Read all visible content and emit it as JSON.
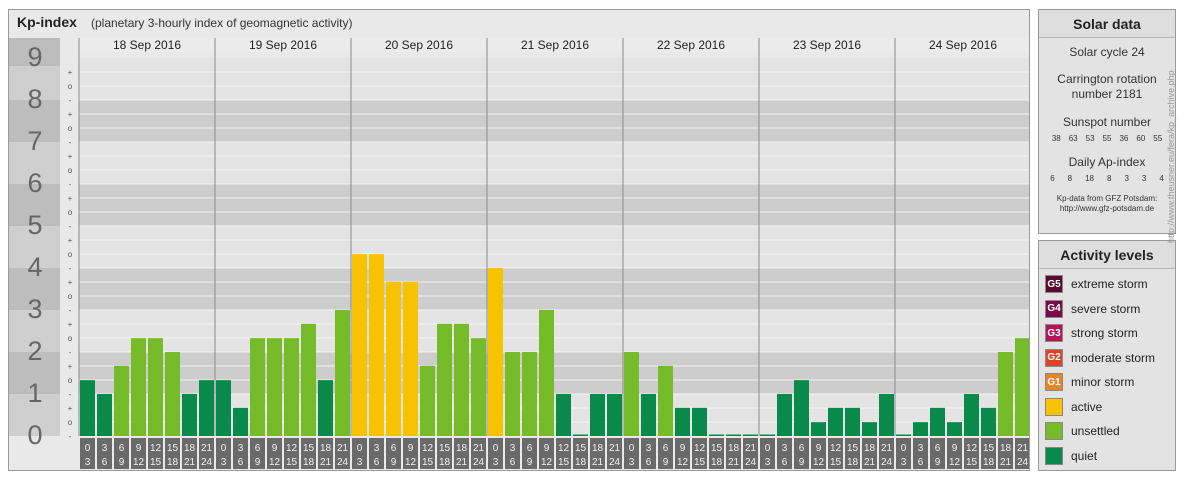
{
  "header": {
    "title": "Kp-index",
    "subtitle": "(planetary 3-hourly index of geomagnetic activity)"
  },
  "chart_data": {
    "type": "bar",
    "ylim": [
      0,
      9
    ],
    "y_major_ticks": [
      "0",
      "1",
      "2",
      "3",
      "4",
      "5",
      "6",
      "7",
      "8",
      "9"
    ],
    "y_minor_ticks": [
      "-",
      "o",
      "+"
    ],
    "days": [
      "18 Sep 2016",
      "19 Sep 2016",
      "20 Sep 2016",
      "21 Sep 2016",
      "22 Sep 2016",
      "23 Sep 2016",
      "24 Sep 2016"
    ],
    "interval_labels": [
      [
        "0",
        "3"
      ],
      [
        "3",
        "6"
      ],
      [
        "6",
        "9"
      ],
      [
        "9",
        "12"
      ],
      [
        "12",
        "15"
      ],
      [
        "15",
        "18"
      ],
      [
        "18",
        "21"
      ],
      [
        "21",
        "24"
      ]
    ],
    "values": [
      [
        1.33,
        1.0,
        1.67,
        2.33,
        2.33,
        2.0,
        1.0,
        1.33
      ],
      [
        1.33,
        0.67,
        2.33,
        2.33,
        2.33,
        2.67,
        1.33,
        3.0
      ],
      [
        4.33,
        4.33,
        3.67,
        3.67,
        1.67,
        2.67,
        2.67,
        2.33
      ],
      [
        4.0,
        2.0,
        2.0,
        3.0,
        1.0,
        0.0,
        1.0,
        1.0
      ],
      [
        2.0,
        1.0,
        1.67,
        0.67,
        0.67,
        0.0,
        0.0,
        0.0
      ],
      [
        0.0,
        1.0,
        1.33,
        0.33,
        0.67,
        0.67,
        0.33,
        1.0
      ],
      [
        0.0,
        0.33,
        0.67,
        0.33,
        1.0,
        0.67,
        2.0,
        2.33
      ]
    ],
    "colors": {
      "quiet": "#0a8a4a",
      "unsettled": "#76bb2a",
      "active": "#f7c300"
    }
  },
  "solar_panel": {
    "title": "Solar data",
    "solar_cycle": "Solar cycle 24",
    "carrington_line1": "Carrington rotation",
    "carrington_line2": "number 2181",
    "sunspot_title": "Sunspot number",
    "sunspot_values": [
      "38",
      "63",
      "53",
      "55",
      "36",
      "60",
      "55"
    ],
    "ap_title": "Daily Ap-index",
    "ap_values": [
      "6",
      "8",
      "18",
      "8",
      "3",
      "3",
      "4"
    ],
    "credit_line1": "Kp-data from GFZ Potsdam:",
    "credit_line2": "http://www.gfz-potsdam.de"
  },
  "activity_panel": {
    "title": "Activity levels",
    "items": [
      {
        "code": "G5",
        "label": "extreme storm",
        "color": "#5a0a2e"
      },
      {
        "code": "G4",
        "label": "severe storm",
        "color": "#7a0a4a"
      },
      {
        "code": "G3",
        "label": "strong storm",
        "color": "#b5145c"
      },
      {
        "code": "G2",
        "label": "moderate storm",
        "color": "#d9452a"
      },
      {
        "code": "G1",
        "label": "minor storm",
        "color": "#e8862a"
      },
      {
        "code": "",
        "label": "active",
        "color": "#f7c300"
      },
      {
        "code": "",
        "label": "unsettled",
        "color": "#76bb2a"
      },
      {
        "code": "",
        "label": "quiet",
        "color": "#0a8a4a"
      }
    ]
  },
  "footer": {
    "vertical_credit": "http://www.theusner.eu/fera/kp_archive.php"
  }
}
